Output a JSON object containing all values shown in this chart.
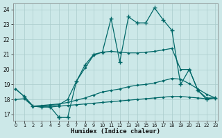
{
  "xlabel": "Humidex (Indice chaleur)",
  "bg_color": "#cce8e8",
  "line_color": "#006868",
  "grid_color": "#aacccc",
  "xlim": [
    -0.3,
    23.3
  ],
  "ylim": [
    16.6,
    24.4
  ],
  "yticks": [
    17,
    18,
    19,
    20,
    21,
    22,
    23,
    24
  ],
  "xticks": [
    0,
    1,
    2,
    3,
    4,
    5,
    6,
    7,
    8,
    9,
    10,
    11,
    12,
    13,
    14,
    15,
    16,
    17,
    18,
    19,
    20,
    21,
    22,
    23
  ],
  "line1_x": [
    0,
    1,
    2,
    3,
    4,
    5,
    6,
    7,
    8,
    9,
    10,
    11,
    12,
    13,
    14,
    15,
    16,
    17,
    18,
    19,
    20,
    21,
    22,
    23
  ],
  "line1_y": [
    18.7,
    18.2,
    17.55,
    17.5,
    17.5,
    17.55,
    17.6,
    17.65,
    17.7,
    17.75,
    17.8,
    17.85,
    17.9,
    17.95,
    18.0,
    18.05,
    18.1,
    18.15,
    18.2,
    18.2,
    18.15,
    18.1,
    18.05,
    18.1
  ],
  "line2_x": [
    0,
    1,
    2,
    3,
    4,
    5,
    6,
    7,
    8,
    9,
    10,
    11,
    12,
    13,
    14,
    15,
    16,
    17,
    18,
    19,
    20,
    21,
    22,
    23
  ],
  "line2_y": [
    18.0,
    18.05,
    17.55,
    17.6,
    17.65,
    17.7,
    17.8,
    17.95,
    18.1,
    18.3,
    18.5,
    18.6,
    18.7,
    18.85,
    18.95,
    19.0,
    19.1,
    19.25,
    19.4,
    19.35,
    19.05,
    18.7,
    18.35,
    18.1
  ],
  "line3_x": [
    0,
    1,
    2,
    3,
    4,
    5,
    6,
    7,
    8,
    9,
    10,
    11,
    12,
    13,
    14,
    15,
    16,
    17,
    18,
    19,
    20,
    21,
    22,
    23
  ],
  "line3_y": [
    18.7,
    18.2,
    17.55,
    17.55,
    17.6,
    17.65,
    18.0,
    19.2,
    20.1,
    20.95,
    21.15,
    21.2,
    21.15,
    21.1,
    21.1,
    21.15,
    21.2,
    21.3,
    21.4,
    20.0,
    20.0,
    18.6,
    18.1,
    18.1
  ],
  "line4_x": [
    1,
    2,
    3,
    4,
    5,
    5,
    6,
    7,
    8,
    9,
    10,
    11,
    12,
    13,
    14,
    15,
    16,
    17,
    18,
    19,
    20,
    21,
    22,
    23
  ],
  "line4_y": [
    18.2,
    17.55,
    17.5,
    17.5,
    16.8,
    16.8,
    16.8,
    19.2,
    20.3,
    21.0,
    21.15,
    23.4,
    20.5,
    23.5,
    23.1,
    23.1,
    24.1,
    23.3,
    22.6,
    19.0,
    20.0,
    18.6,
    18.0,
    18.1
  ]
}
